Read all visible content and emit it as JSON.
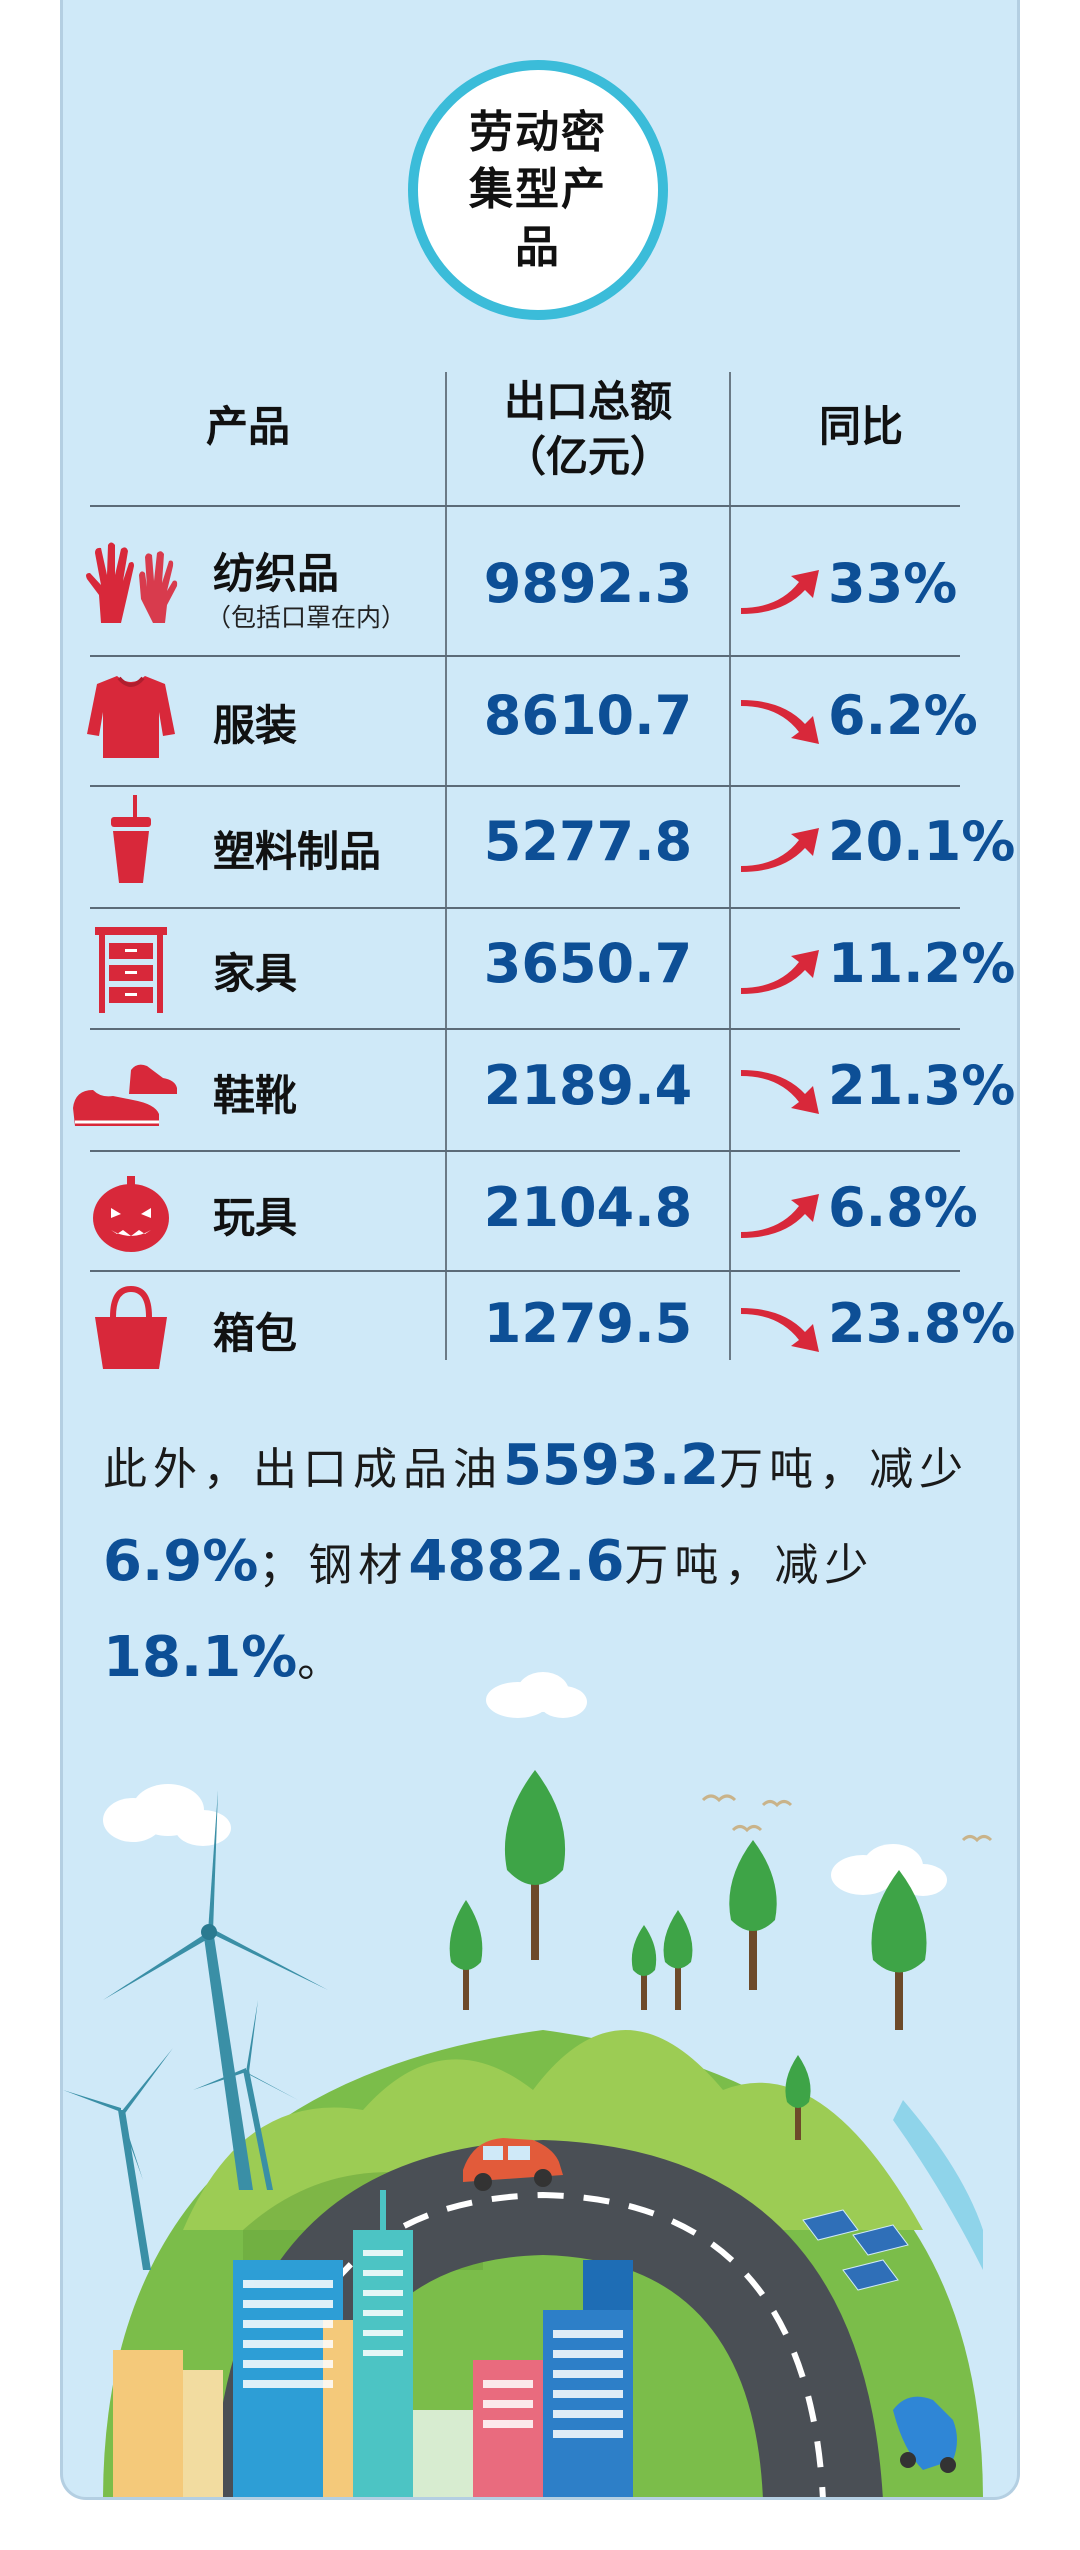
{
  "title": "劳动密集型产品",
  "headers": {
    "product": "产品",
    "total": "出口总额\n（亿元）",
    "yoy": "同比"
  },
  "rows": [
    {
      "name": "纺织品",
      "sub": "（包括口罩在内）",
      "value": "9892.3",
      "pct": "33%",
      "trend": "up"
    },
    {
      "name": "服装",
      "sub": "",
      "value": "8610.7",
      "pct": "6.2%",
      "trend": "down"
    },
    {
      "name": "塑料制品",
      "sub": "",
      "value": "5277.8",
      "pct": "20.1%",
      "trend": "up"
    },
    {
      "name": "家具",
      "sub": "",
      "value": "3650.7",
      "pct": "11.2%",
      "trend": "up"
    },
    {
      "name": "鞋靴",
      "sub": "",
      "value": "2189.4",
      "pct": "21.3%",
      "trend": "down"
    },
    {
      "name": "玩具",
      "sub": "",
      "value": "2104.8",
      "pct": "6.8%",
      "trend": "up"
    },
    {
      "name": "箱包",
      "sub": "",
      "value": "1279.5",
      "pct": "23.8%",
      "trend": "down"
    }
  ],
  "icons": [
    "hands-icon",
    "sweater-icon",
    "cup-icon",
    "cabinet-icon",
    "shoes-icon",
    "pumpkin-icon",
    "basket-icon"
  ],
  "footer": {
    "t1": "此外，出口成品油",
    "v1": "5593.2",
    "t2": "万吨，减少",
    "v2": "6.9%",
    "t3": "；钢材",
    "v3": "4882.6",
    "t4": "万吨，减少",
    "v4": "18.1%",
    "t5": "。"
  },
  "colors": {
    "accent": "#0d4f96",
    "icon": "#d8283a",
    "ring": "#3bbcd9",
    "panel": "#cfe9f8"
  }
}
